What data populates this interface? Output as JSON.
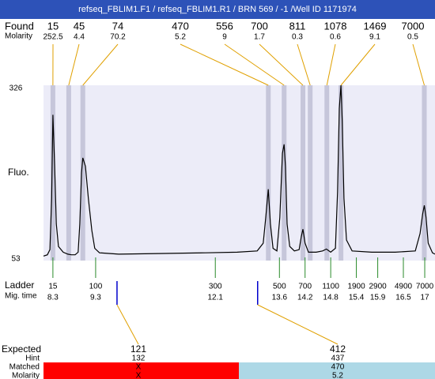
{
  "title": "refseq_FBLIM1.F1 / refseq_FBLIM1.R1 / BRN 569 / -1 /Well ID 1171974",
  "found": {
    "label": "Found",
    "molarity_label": "Molarity",
    "peaks": [
      {
        "size": 15,
        "molarity": 252.5,
        "time": 8.3
      },
      {
        "size": 45,
        "molarity": 4.4,
        "time": 8.67
      },
      {
        "size": 74,
        "molarity": 70.2,
        "time": 9.0
      },
      {
        "size": 470,
        "molarity": 5.2,
        "time": 13.34
      },
      {
        "size": 556,
        "molarity": 9,
        "time": 13.71
      },
      {
        "size": 700,
        "molarity": 1.7,
        "time": 14.15
      },
      {
        "size": 811,
        "molarity": 0.3,
        "time": 14.32
      },
      {
        "size": 1078,
        "molarity": 0.6,
        "time": 14.71
      },
      {
        "size": 1469,
        "molarity": 9.1,
        "time": 15.04
      },
      {
        "size": 7000,
        "molarity": 0.5,
        "time": 16.99
      }
    ]
  },
  "chart_data": {
    "type": "line",
    "y_label": "Fluo.",
    "color": "#000000",
    "background": "#ececf8",
    "xlim": [
      8.08,
      17.24
    ],
    "ylim": [
      53,
      326
    ],
    "yticks": [
      326,
      53
    ],
    "x": [
      8.08,
      8.17,
      8.23,
      8.27,
      8.3,
      8.34,
      8.38,
      8.43,
      8.54,
      8.65,
      8.73,
      8.82,
      8.89,
      8.93,
      8.97,
      9.0,
      9.06,
      9.13,
      9.21,
      9.28,
      9.39,
      9.84,
      10.76,
      11.87,
      12.61,
      13.08,
      13.22,
      13.28,
      13.34,
      13.39,
      13.45,
      13.54,
      13.61,
      13.67,
      13.71,
      13.74,
      13.78,
      13.84,
      13.95,
      14.06,
      14.11,
      14.15,
      14.2,
      14.28,
      14.46,
      14.61,
      14.7,
      14.8,
      14.91,
      14.96,
      15.0,
      15.04,
      15.07,
      15.11,
      15.17,
      15.3,
      15.76,
      16.31,
      16.78,
      16.89,
      16.95,
      16.99,
      17.03,
      17.08,
      17.18,
      17.24
    ],
    "values": [
      60,
      62,
      70,
      150,
      280,
      200,
      110,
      75,
      66,
      63,
      62,
      62,
      66,
      110,
      190,
      213,
      200,
      150,
      100,
      72,
      65,
      63,
      64,
      65,
      66,
      68,
      80,
      120,
      164,
      110,
      72,
      68,
      120,
      220,
      234,
      200,
      110,
      75,
      68,
      70,
      90,
      102,
      80,
      66,
      66,
      68,
      71,
      66,
      72,
      160,
      290,
      326,
      270,
      150,
      85,
      68,
      66,
      66,
      68,
      95,
      125,
      139,
      120,
      80,
      65,
      63
    ]
  },
  "ladder": {
    "label": "Ladder",
    "time_label": "Mig. time",
    "sizes": [
      15,
      100,
      300,
      500,
      700,
      1100,
      1900,
      2900,
      4900,
      7000
    ],
    "times": [
      8.3,
      9.3,
      12.1,
      13.6,
      14.2,
      14.8,
      15.4,
      15.9,
      16.5,
      17
    ]
  },
  "expected": {
    "label": "Expected",
    "hint_label": "Hint",
    "matched_label": "Matched",
    "molarity_label": "Molarity",
    "items": [
      {
        "size": 121,
        "time": 9.8,
        "hint": 132,
        "matched": "X",
        "molarity": "X"
      },
      {
        "size": 412,
        "time": 13.09,
        "hint": 437,
        "matched": 470,
        "molarity": 5.2
      }
    ]
  }
}
